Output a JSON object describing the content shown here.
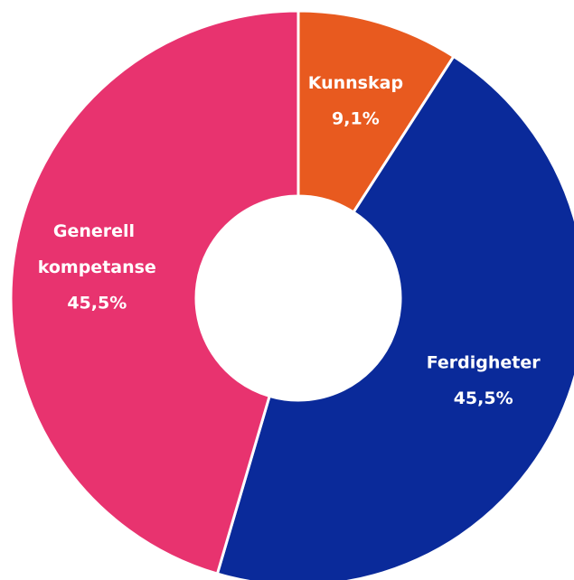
{
  "chart_data": {
    "type": "donut",
    "categories": [
      "Kunnskap",
      "Ferdigheter",
      "Generell kompetanse"
    ],
    "values": [
      9.1,
      45.5,
      45.5
    ],
    "value_labels": [
      "9,1%",
      "45,5%",
      "45,5%"
    ],
    "colors": [
      "#e85a1f",
      "#0a2a9a",
      "#e8336f"
    ]
  }
}
